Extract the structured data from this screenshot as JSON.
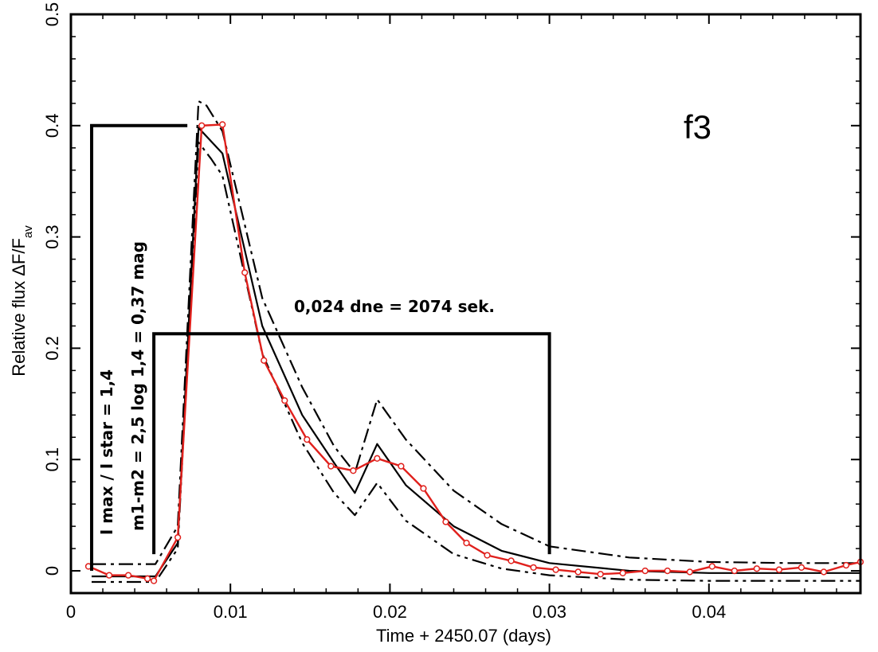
{
  "chart_data": {
    "type": "line",
    "panel_label": "f3",
    "xlabel": "Time + 2450.07 (days)",
    "ylabel_main": "Relative flux ΔF/F",
    "ylabel_sub": "av",
    "xlim": [
      0,
      0.0495
    ],
    "ylim": [
      -0.02,
      0.5
    ],
    "xticks": [
      0,
      0.01,
      0.02,
      0.03,
      0.04
    ],
    "xtick_labels": [
      "0",
      "0.01",
      "0.02",
      "0.03",
      "0.04"
    ],
    "yticks": [
      0,
      0.1,
      0.2,
      0.3,
      0.4,
      0.5
    ],
    "ytick_labels": [
      "0",
      "0.1",
      "0.2",
      "0.3",
      "0.4",
      "0.5"
    ],
    "series": [
      {
        "color": "#e0201c",
        "style": "solid-with-circles",
        "x": [
          0.0011,
          0.0024,
          0.0036,
          0.0048,
          0.0052,
          0.0067,
          0.0082,
          0.0095,
          0.0109,
          0.0121,
          0.0134,
          0.0148,
          0.0163,
          0.0177,
          0.0192,
          0.0207,
          0.0221,
          0.0235,
          0.0248,
          0.0261,
          0.0276,
          0.029,
          0.0304,
          0.0318,
          0.0332,
          0.0346,
          0.036,
          0.0374,
          0.0388,
          0.0402,
          0.0416,
          0.043,
          0.0444,
          0.0458,
          0.0472,
          0.0486,
          0.0495
        ],
        "y": [
          0.004,
          -0.004,
          -0.004,
          -0.007,
          -0.009,
          0.03,
          0.4,
          0.401,
          0.268,
          0.189,
          0.153,
          0.118,
          0.094,
          0.09,
          0.101,
          0.094,
          0.074,
          0.044,
          0.025,
          0.014,
          0.009,
          0.003,
          0.001,
          -0.001,
          -0.003,
          -0.002,
          0.0,
          0.0,
          -0.001,
          0.004,
          0.0,
          0.002,
          0.001,
          0.003,
          -0.001,
          0.005,
          0.008
        ]
      },
      {
        "color": "#000000",
        "style": "solid",
        "x": [
          0.0013,
          0.0053,
          0.0067,
          0.008,
          0.0095,
          0.012,
          0.0145,
          0.0165,
          0.0178,
          0.0192,
          0.021,
          0.024,
          0.027,
          0.03,
          0.035,
          0.04,
          0.045,
          0.0495
        ],
        "y": [
          -0.005,
          -0.005,
          0.025,
          0.398,
          0.375,
          0.22,
          0.14,
          0.097,
          0.07,
          0.114,
          0.077,
          0.04,
          0.018,
          0.007,
          0.0,
          -0.002,
          -0.002,
          -0.002
        ]
      },
      {
        "color": "#000000",
        "style": "dash-dot",
        "x": [
          0.0013,
          0.0053,
          0.0067,
          0.008,
          0.0085,
          0.0095,
          0.012,
          0.0145,
          0.0165,
          0.0178,
          0.0192,
          0.021,
          0.024,
          0.027,
          0.03,
          0.035,
          0.04,
          0.045,
          0.0495
        ],
        "y": [
          0.006,
          0.006,
          0.04,
          0.422,
          0.418,
          0.395,
          0.245,
          0.165,
          0.112,
          0.088,
          0.154,
          0.118,
          0.072,
          0.042,
          0.022,
          0.012,
          0.008,
          0.007,
          0.007
        ]
      },
      {
        "color": "#000000",
        "style": "dash-dot-dot",
        "x": [
          0.0013,
          0.0053,
          0.0067,
          0.008,
          0.0088,
          0.0095,
          0.012,
          0.0145,
          0.0165,
          0.0178,
          0.0192,
          0.021,
          0.024,
          0.027,
          0.03,
          0.035,
          0.04,
          0.045,
          0.0495
        ],
        "y": [
          -0.01,
          -0.01,
          0.02,
          0.385,
          0.37,
          0.355,
          0.195,
          0.115,
          0.07,
          0.05,
          0.079,
          0.045,
          0.015,
          0.002,
          -0.004,
          -0.008,
          -0.009,
          -0.009,
          -0.009
        ]
      }
    ],
    "annotations": [
      {
        "text": "0,024 dne = 2074 sek.",
        "orientation": "horizontal"
      },
      {
        "text": "m1-m2 = 2,5 log 1,4 = 0,37 mag",
        "orientation": "vertical"
      },
      {
        "text": "I max / I star = 1,4",
        "orientation": "vertical"
      }
    ],
    "brackets": [
      {
        "x_from": 0.0013,
        "x_to": 0.0073,
        "y_from": 0.0,
        "y_to": 0.4
      },
      {
        "x_from": 0.0052,
        "x_to": 0.03,
        "y_from": 0.015,
        "y_to": 0.213
      }
    ],
    "grid": false,
    "legend": "none"
  }
}
